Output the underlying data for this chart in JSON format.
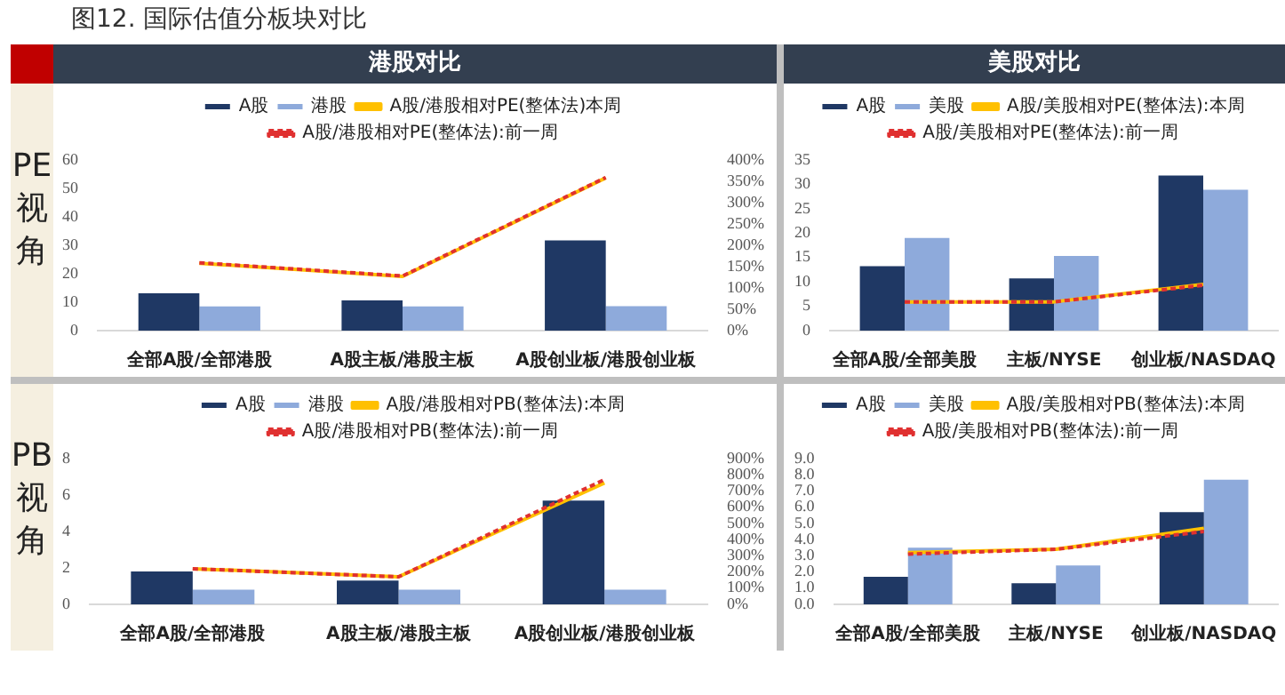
{
  "chart_data": [
    {
      "type": "other",
      "title": "图12. 国际估值分板块对比",
      "annotations": [
        "港股对比",
        "美股对比",
        "PE视角",
        "PB视角"
      ]
    },
    {
      "type": "bar",
      "categories": [
        "全部A股/全部港股",
        "A股主板/港股主板",
        "A股创业板/港股创业板"
      ],
      "ylim": [
        0,
        60
      ],
      "yticks": [
        0,
        10,
        20,
        30,
        40,
        50,
        60
      ],
      "y2lim": [
        0,
        400
      ],
      "y2ticks": [
        {
          "value": 0,
          "label": "0%"
        },
        {
          "value": 50,
          "label": "50%"
        },
        {
          "value": 100,
          "label": "100%"
        },
        {
          "value": 150,
          "label": "150%"
        },
        {
          "value": 200,
          "label": "200%"
        },
        {
          "value": 250,
          "label": "250%"
        },
        {
          "value": 300,
          "label": "300%"
        },
        {
          "value": 350,
          "label": "350%"
        },
        {
          "value": 400,
          "label": "400%"
        }
      ],
      "grid": false,
      "legend": "top",
      "marker": "none",
      "series": [
        {
          "name": "A股",
          "color": "#1f3864",
          "values": [
            13.1,
            10.6,
            31.7
          ]
        },
        {
          "name": "港股",
          "color": "#8eaadb",
          "values": [
            8.5,
            8.5,
            8.6
          ]
        },
        {
          "name": "A股/港股相对PE(整体法)本周",
          "type": "line",
          "axis": "y2",
          "color": "#ffc000",
          "line_style": "solid",
          "values": [
            158,
            127,
            358
          ]
        },
        {
          "name": "A股/港股相对PE(整体法):前一周",
          "type": "line",
          "axis": "y2",
          "color": "#e03030",
          "line_style": "dashed",
          "values": [
            159,
            128,
            359
          ]
        }
      ]
    },
    {
      "type": "bar",
      "categories": [
        "全部A股/全部美股",
        "主板/NYSE",
        "创业板/NASDAQ"
      ],
      "ylim": [
        0,
        35
      ],
      "yticks": [
        0,
        5,
        10,
        15,
        20,
        25,
        30,
        35
      ],
      "grid": false,
      "legend": "top",
      "marker": "none",
      "series": [
        {
          "name": "A股",
          "color": "#1f3864",
          "values": [
            13.2,
            10.7,
            31.8
          ]
        },
        {
          "name": "美股",
          "color": "#8eaadb",
          "values": [
            19.0,
            15.3,
            28.9
          ]
        },
        {
          "name": "A股/美股相对PE(整体法):本周",
          "type": "line",
          "color": "#ffc000",
          "line_style": "solid",
          "values": [
            5.9,
            5.9,
            9.5
          ]
        },
        {
          "name": "A股/美股相对PE(整体法):前一周",
          "type": "line",
          "color": "#e03030",
          "line_style": "dashed",
          "values": [
            5.9,
            5.9,
            9.3
          ]
        }
      ]
    },
    {
      "type": "bar",
      "categories": [
        "全部A股/全部港股",
        "A股主板/港股主板",
        "A股创业板/港股创业板"
      ],
      "ylim": [
        0,
        8
      ],
      "yticks": [
        0,
        2,
        4,
        6,
        8
      ],
      "y2lim": [
        0,
        900
      ],
      "y2ticks": [
        {
          "value": 0,
          "label": "0%"
        },
        {
          "value": 100,
          "label": "100%"
        },
        {
          "value": 200,
          "label": "200%"
        },
        {
          "value": 300,
          "label": "300%"
        },
        {
          "value": 400,
          "label": "400%"
        },
        {
          "value": 500,
          "label": "500%"
        },
        {
          "value": 600,
          "label": "600%"
        },
        {
          "value": 700,
          "label": "700%"
        },
        {
          "value": 800,
          "label": "800%"
        },
        {
          "value": 900,
          "label": "900%"
        }
      ],
      "grid": false,
      "legend": "top",
      "marker": "none",
      "series": [
        {
          "name": "A股",
          "color": "#1f3864",
          "values": [
            1.8,
            1.3,
            5.7
          ]
        },
        {
          "name": "港股",
          "color": "#8eaadb",
          "values": [
            0.8,
            0.8,
            0.8
          ]
        },
        {
          "name": "A股/港股相对PB(整体法):本周",
          "type": "line",
          "axis": "y2",
          "color": "#ffc000",
          "line_style": "solid",
          "values": [
            220,
            170,
            750
          ]
        },
        {
          "name": "A股/港股相对PB(整体法):前一周",
          "type": "line",
          "axis": "y2",
          "color": "#e03030",
          "line_style": "dashed",
          "values": [
            220,
            170,
            770
          ]
        }
      ]
    },
    {
      "type": "bar",
      "categories": [
        "全部A股/全部美股",
        "主板/NYSE",
        "创业板/NASDAQ"
      ],
      "ylim": [
        0,
        9
      ],
      "yticks": [
        {
          "value": 0,
          "label": "0.0"
        },
        {
          "value": 1,
          "label": "1.0"
        },
        {
          "value": 2,
          "label": "2.0"
        },
        {
          "value": 3,
          "label": "3.0"
        },
        {
          "value": 4,
          "label": "4.0"
        },
        {
          "value": 5,
          "label": "5.0"
        },
        {
          "value": 6,
          "label": "6.0"
        },
        {
          "value": 7,
          "label": "7.0"
        },
        {
          "value": 8,
          "label": "8.0"
        },
        {
          "value": 9,
          "label": "9.0"
        }
      ],
      "grid": false,
      "legend": "top",
      "marker": "none",
      "series": [
        {
          "name": "A股",
          "color": "#1f3864",
          "values": [
            1.7,
            1.3,
            5.7
          ]
        },
        {
          "name": "美股",
          "color": "#8eaadb",
          "values": [
            3.5,
            2.4,
            7.7
          ]
        },
        {
          "name": "A股/美股相对PB(整体法):本周",
          "type": "line",
          "color": "#ffc000",
          "line_style": "solid",
          "values": [
            3.2,
            3.4,
            4.7
          ]
        },
        {
          "name": "A股/美股相对PB(整体法):前一周",
          "type": "line",
          "color": "#e03030",
          "line_style": "dashed",
          "values": [
            3.1,
            3.4,
            4.5
          ]
        }
      ]
    }
  ]
}
